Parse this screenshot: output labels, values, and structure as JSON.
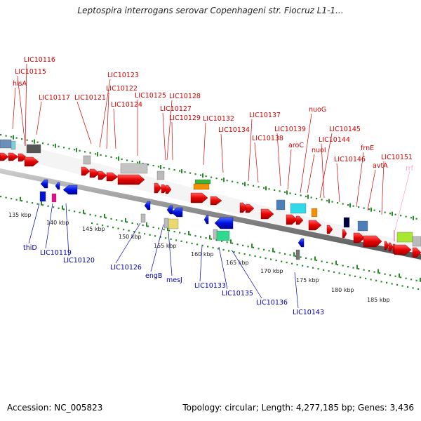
{
  "title": "Leptospira interrogans serovar Copenhageni str. Fiocruz L1-1...",
  "footer": {
    "accession": "Accession: NC_005823",
    "summary": "Topology: circular; Length: 4,277,185 bp; Genes: 3,436"
  },
  "colors": {
    "forward_gene": "#e00000",
    "reverse_gene": "#0000d0",
    "forward_label": "#d00000",
    "reverse_label": "#0000b0",
    "rrna_label": "#ff9fd0",
    "kbp_dots": "#2a8a2a"
  },
  "tick_labels": [
    "135 kbp",
    "140 kbp",
    "145 kbp",
    "150 kbp",
    "155 kbp",
    "160 kbp",
    "165 kbp",
    "170 kbp",
    "175 kbp",
    "180 kbp",
    "185 kbp"
  ],
  "forward_labels": [
    "LIC10116",
    "LIC10115",
    "hisA",
    "LIC10117",
    "LIC10121",
    "LIC10123",
    "LIC10122",
    "LIC10124",
    "LIC10125",
    "LIC10128",
    "LIC10127",
    "LIC10129",
    "LIC10132",
    "LIC10134",
    "LIC10137",
    "LIC10138",
    "LIC10139",
    "aroC",
    "nuoG",
    "nuoI",
    "LIC10145",
    "LIC10144",
    "LIC10146",
    "frnE",
    "avtA",
    "LIC10151"
  ],
  "rrna_label": "rrf",
  "reverse_labels": [
    "thiD",
    "LIC10119",
    "LIC10120",
    "LIC10126",
    "engB",
    "mesJ",
    "LIC10133",
    "LIC10135",
    "LIC10136",
    "LIC10143"
  ]
}
